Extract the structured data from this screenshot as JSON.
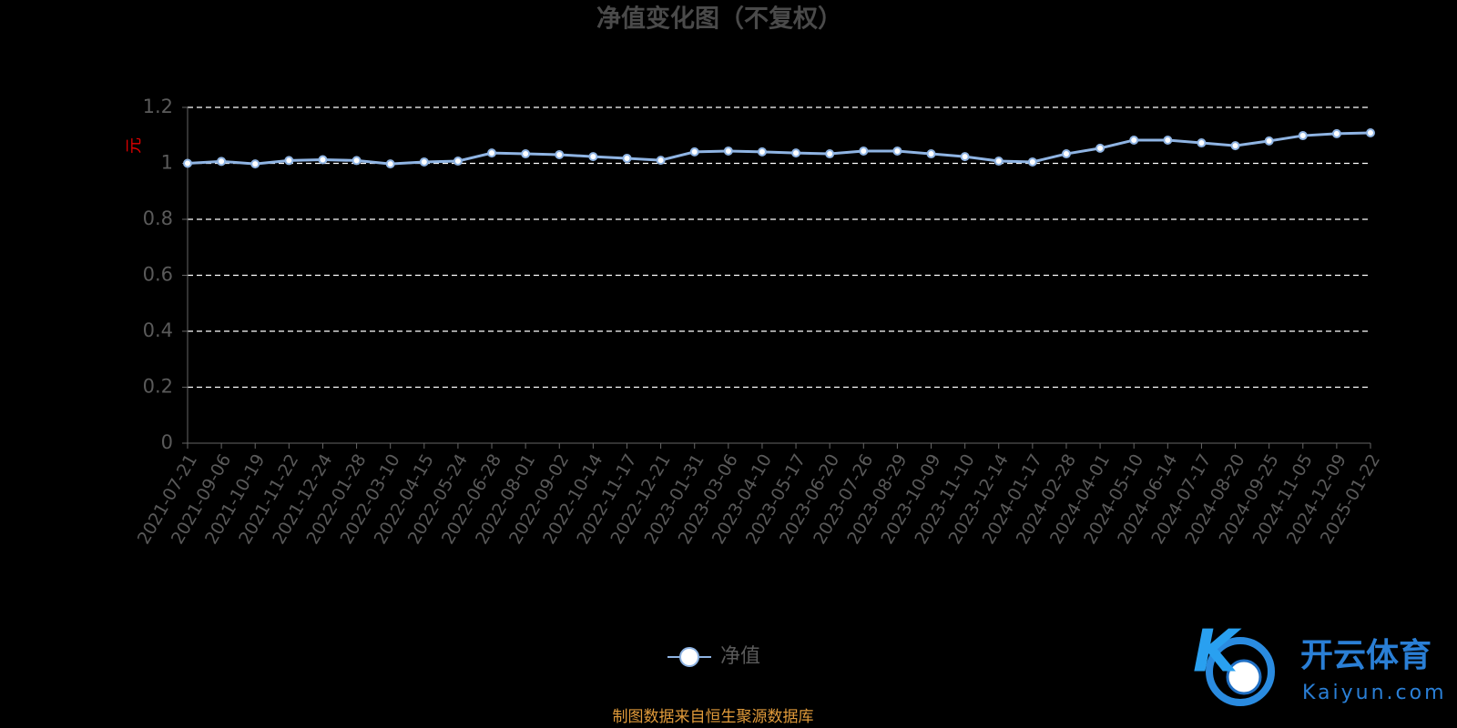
{
  "chart_data": {
    "type": "line",
    "title": "净值变化图（不复权）",
    "y_label": "元",
    "categories": [
      "2021-07-21",
      "2021-09-06",
      "2021-10-19",
      "2021-11-22",
      "2021-12-24",
      "2022-01-28",
      "2022-03-10",
      "2022-04-15",
      "2022-05-24",
      "2022-06-28",
      "2022-08-01",
      "2022-09-02",
      "2022-10-14",
      "2022-11-17",
      "2022-12-21",
      "2023-01-31",
      "2023-03-06",
      "2023-04-10",
      "2023-05-17",
      "2023-06-20",
      "2023-07-26",
      "2023-08-29",
      "2023-10-09",
      "2023-11-10",
      "2023-12-14",
      "2024-01-17",
      "2024-02-28",
      "2024-04-01",
      "2024-05-10",
      "2024-06-14",
      "2024-07-17",
      "2024-08-20",
      "2024-09-25",
      "2024-11-05",
      "2024-12-09",
      "2025-01-22"
    ],
    "series": [
      {
        "name": "净值",
        "color": "#8fb4e3",
        "values": [
          1.0,
          1.007,
          0.998,
          1.01,
          1.013,
          1.01,
          0.998,
          1.005,
          1.008,
          1.037,
          1.034,
          1.031,
          1.024,
          1.018,
          1.011,
          1.041,
          1.044,
          1.041,
          1.037,
          1.034,
          1.044,
          1.044,
          1.034,
          1.024,
          1.008,
          1.005,
          1.034,
          1.054,
          1.083,
          1.083,
          1.073,
          1.063,
          1.08,
          1.099,
          1.106,
          1.109
        ]
      }
    ],
    "ylim": [
      0,
      1.2
    ],
    "yticks": [
      0,
      0.2,
      0.4,
      0.6,
      0.8,
      1,
      1.2
    ],
    "grid": true,
    "source": "制图数据来自恒生聚源数据库",
    "watermark": {
      "brand": "开云体育",
      "site": "Kaiyun.com"
    }
  }
}
